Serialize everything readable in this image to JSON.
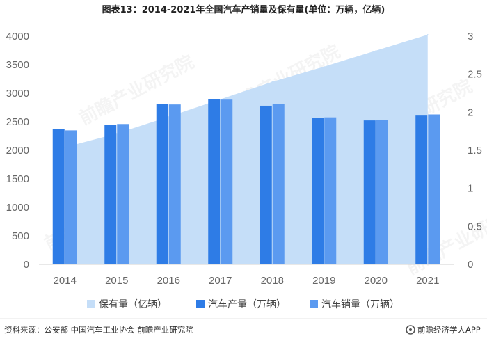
{
  "chart_data": {
    "type": "bar",
    "title": "图表13：2014-2021年全国汽车产销量及保有量(单位：万辆，亿辆)",
    "categories": [
      "2014",
      "2015",
      "2016",
      "2017",
      "2018",
      "2019",
      "2020",
      "2021"
    ],
    "series": [
      {
        "name": "保有量（亿辆）",
        "type": "area",
        "axis": "right",
        "values": [
          1.54,
          1.72,
          1.94,
          2.17,
          2.4,
          2.6,
          2.81,
          3.02
        ],
        "color": "#c5def8"
      },
      {
        "name": "汽车产量（万辆）",
        "type": "bar",
        "axis": "left",
        "values": [
          2372,
          2450,
          2812,
          2902,
          2781,
          2572,
          2523,
          2608
        ],
        "color": "#2e7ce6"
      },
      {
        "name": "汽车销量（万辆）",
        "type": "bar",
        "axis": "left",
        "values": [
          2349,
          2460,
          2803,
          2888,
          2808,
          2577,
          2531,
          2628
        ],
        "color": "#5b9af0"
      }
    ],
    "y_left": {
      "min": 0,
      "max": 4000,
      "ticks": [
        0,
        500,
        1000,
        1500,
        2000,
        2500,
        3000,
        3500,
        4000
      ]
    },
    "y_right": {
      "min": 0,
      "max": 3,
      "ticks": [
        "0",
        "0.5",
        "1",
        "1.5",
        "2",
        "2.5",
        "3"
      ]
    },
    "legend_position": "bottom",
    "grid": false
  },
  "footer": {
    "source": "资料来源：公安部 中国汽车工业协会 前瞻产业研究院",
    "brand": "前瞻经济学人APP"
  },
  "watermark": "前瞻产业研究院",
  "colors": {
    "axis": "#d0d0d0",
    "tick": "#666666"
  }
}
